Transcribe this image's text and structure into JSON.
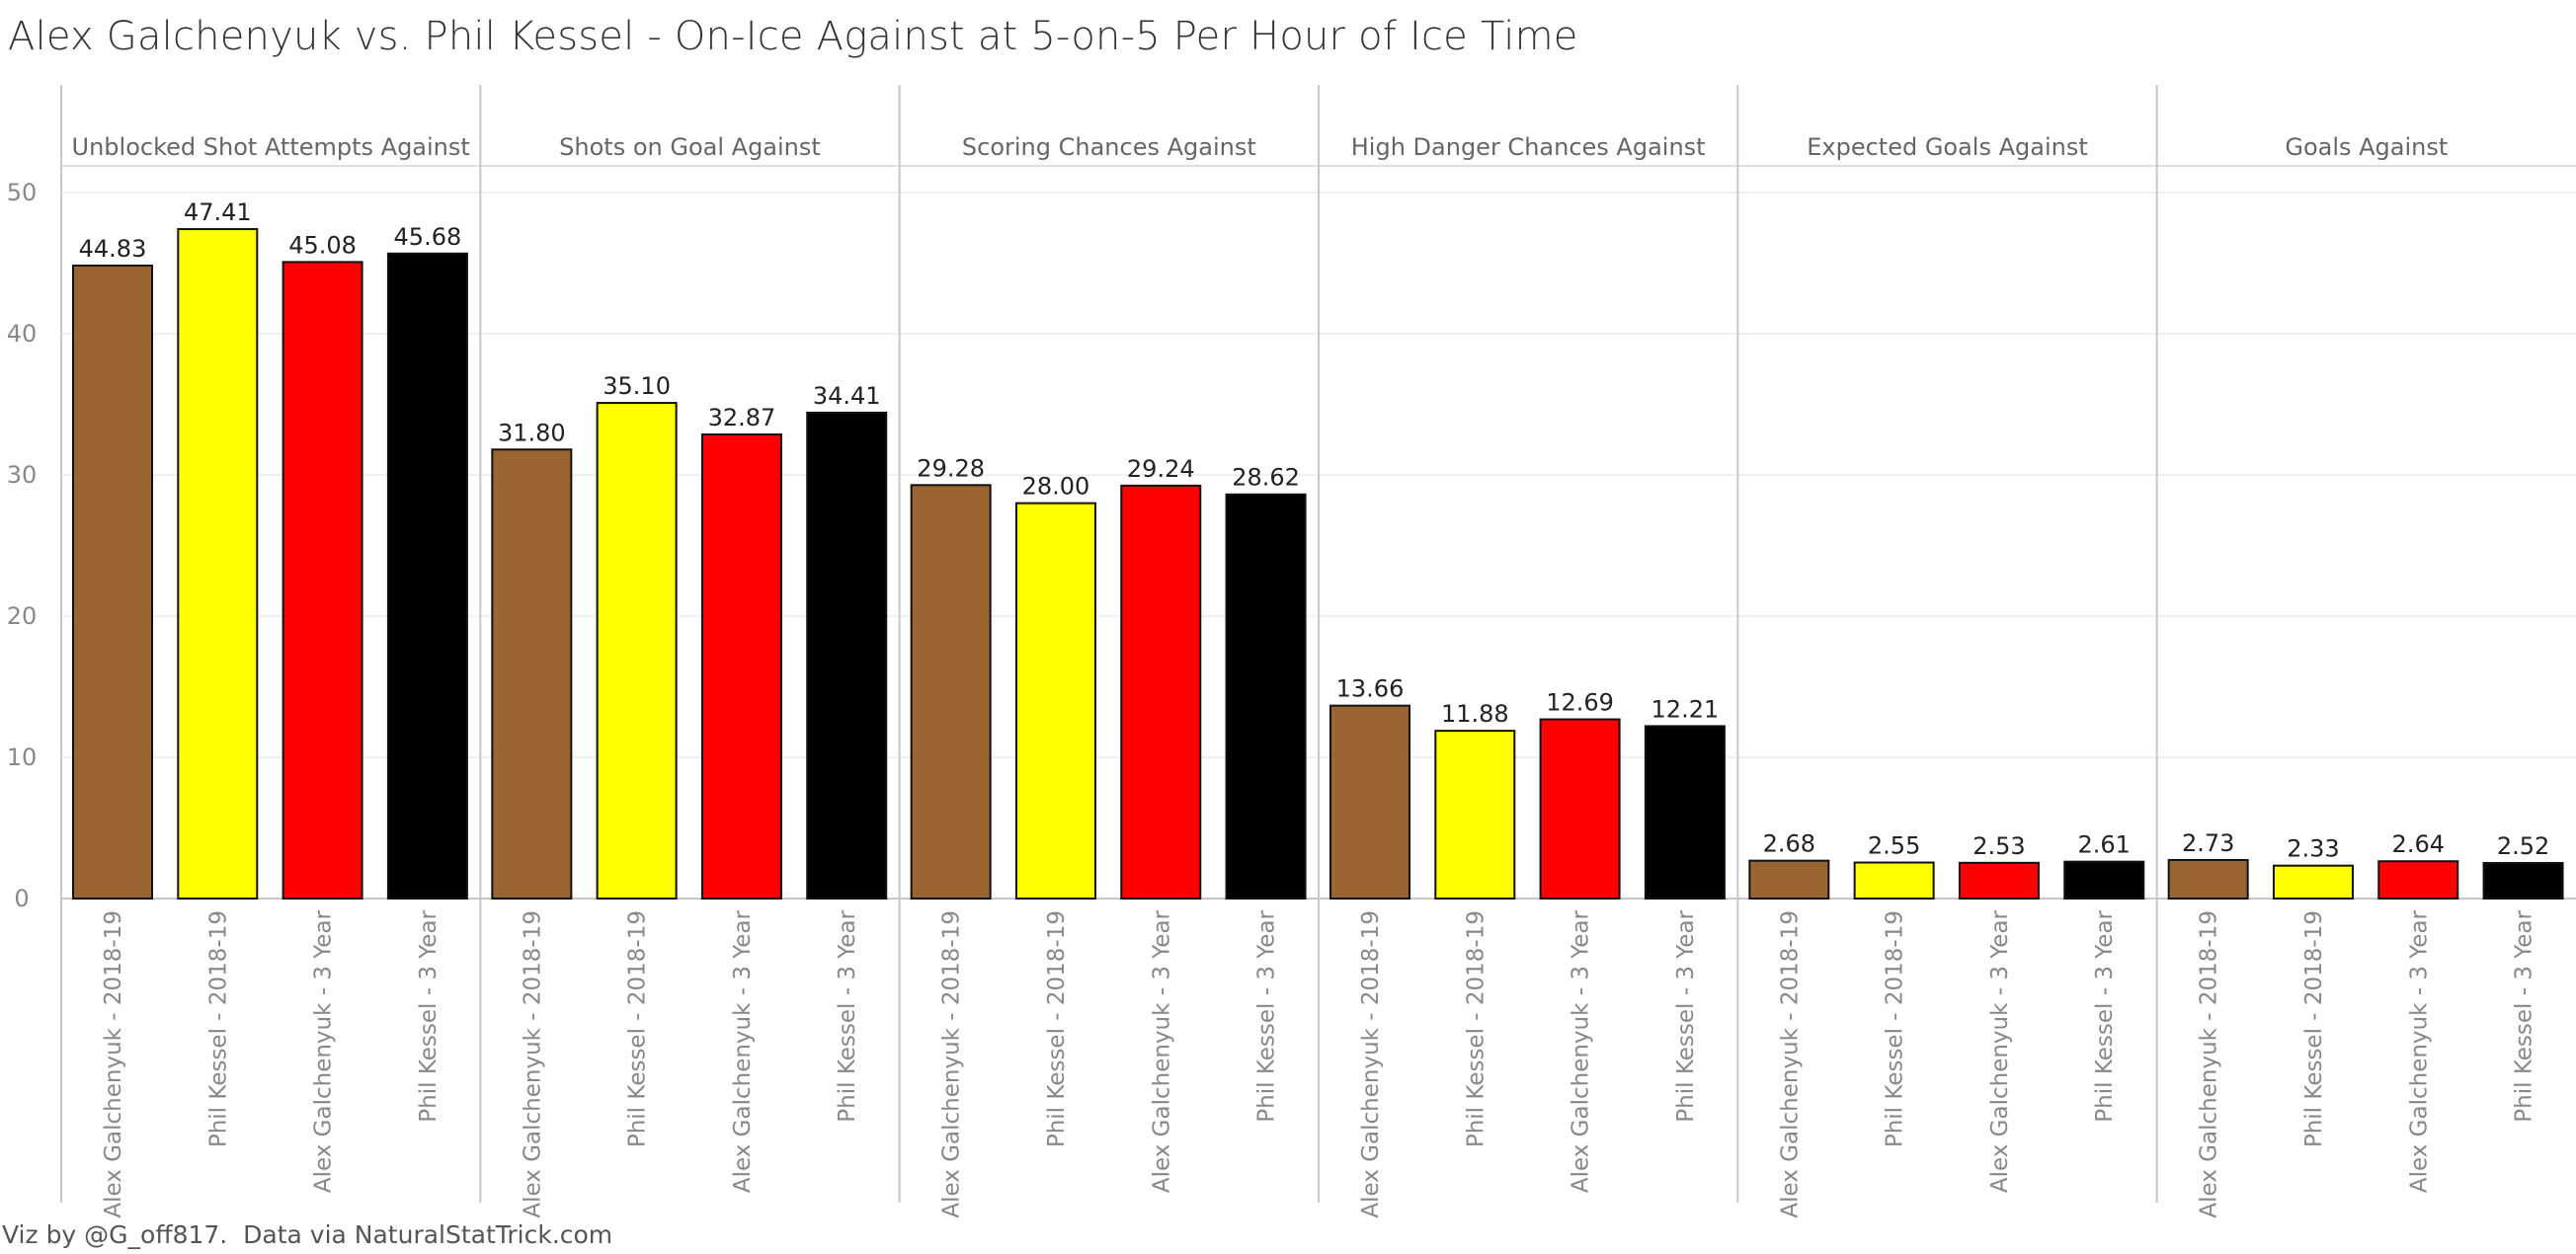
{
  "title": "Alex Galchenyuk vs. Phil Kessel - On-Ice Against at 5-on-5 Per Hour of Ice Time",
  "footer": "Viz by @G_off817.  Data via NaturalStatTrick.com",
  "chart_data": {
    "type": "bar",
    "title": "Alex Galchenyuk vs. Phil Kessel - On-Ice Against at 5-on-5 Per Hour of Ice Time",
    "xlabel": "",
    "ylabel": "",
    "ylim": [
      0,
      50
    ],
    "yticks": [
      0,
      10,
      20,
      30,
      40,
      50
    ],
    "grid": true,
    "categories": [
      "Alex Galchenyuk - 2018-19",
      "Phil Kessel - 2018-19",
      "Alex Galchenyuk - 3 Year",
      "Phil Kessel - 3 Year"
    ],
    "colors": [
      "#9a6530",
      "#ffff00",
      "#ff0000",
      "#000000"
    ],
    "panels": [
      {
        "name": "Unblocked Shot Attempts Against",
        "values": [
          44.83,
          47.41,
          45.08,
          45.68
        ],
        "labels": [
          "44.83",
          "47.41",
          "45.08",
          "45.68"
        ]
      },
      {
        "name": "Shots on Goal Against",
        "values": [
          31.8,
          35.1,
          32.87,
          34.41
        ],
        "labels": [
          "31.80",
          "35.10",
          "32.87",
          "34.41"
        ]
      },
      {
        "name": "Scoring Chances Against",
        "values": [
          29.28,
          28.0,
          29.24,
          28.62
        ],
        "labels": [
          "29.28",
          "28.00",
          "29.24",
          "28.62"
        ]
      },
      {
        "name": "High Danger Chances Against",
        "values": [
          13.66,
          11.88,
          12.69,
          12.21
        ],
        "labels": [
          "13.66",
          "11.88",
          "12.69",
          "12.21"
        ]
      },
      {
        "name": "Expected Goals Against",
        "values": [
          2.68,
          2.55,
          2.53,
          2.61
        ],
        "labels": [
          "2.68",
          "2.55",
          "2.53",
          "2.61"
        ]
      },
      {
        "name": "Goals Against",
        "values": [
          2.73,
          2.33,
          2.64,
          2.52
        ],
        "labels": [
          "2.73",
          "2.33",
          "2.64",
          "2.52"
        ]
      }
    ]
  }
}
